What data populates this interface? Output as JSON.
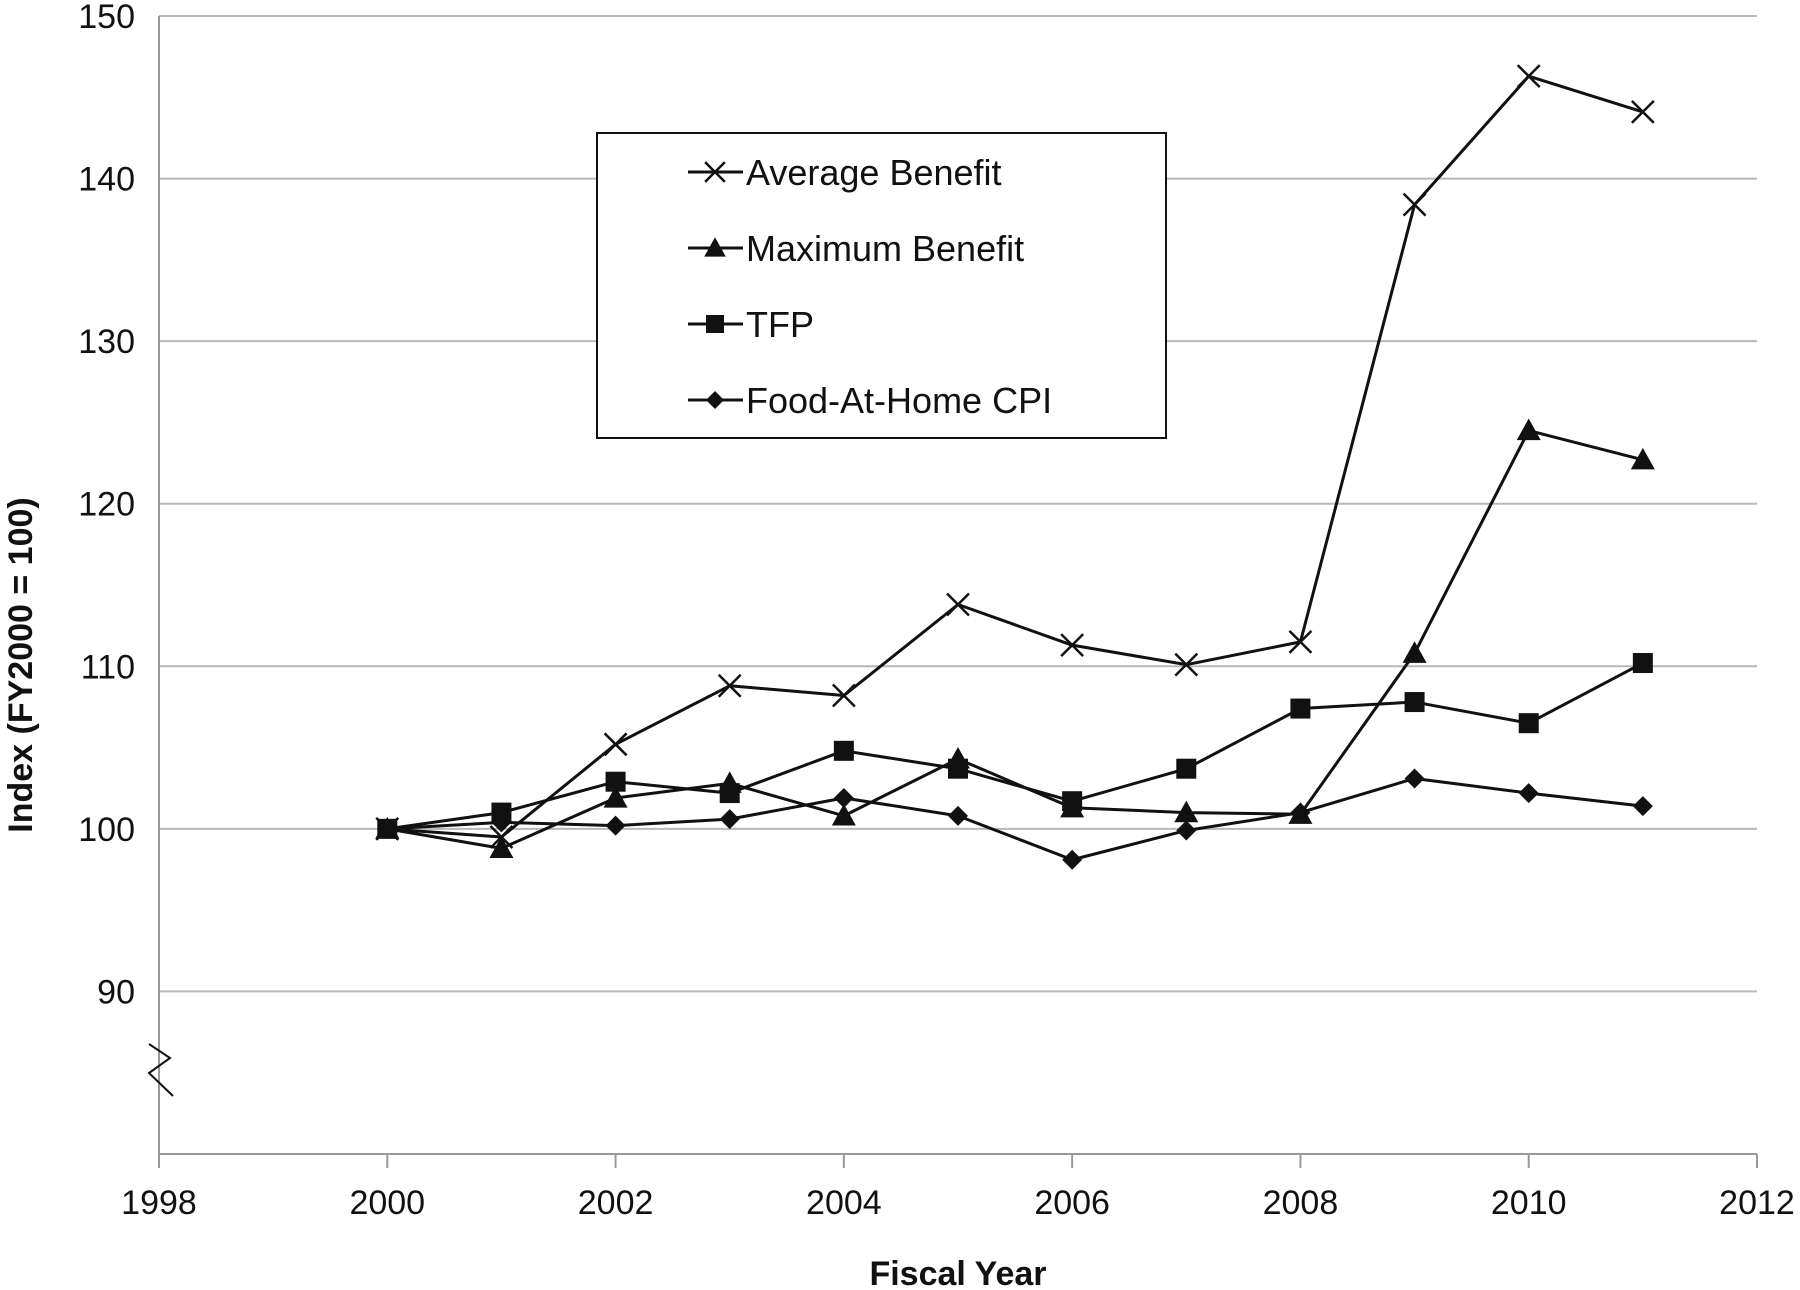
{
  "chart_data": {
    "type": "line",
    "title": "",
    "xlabel": "Fiscal Year",
    "ylabel": "Index (FY2000 = 100)",
    "xlim": [
      1998,
      2012
    ],
    "ylim": [
      80,
      150
    ],
    "x_ticks": [
      "1998",
      "2000",
      "2002",
      "2004",
      "2006",
      "2008",
      "2010",
      "2012"
    ],
    "y_ticks": [
      "90",
      "100",
      "110",
      "120",
      "130",
      "140",
      "150"
    ],
    "grid": "horizontal",
    "axis_break": "y-axis between 80 and 90",
    "legend_position": "upper-center",
    "x": [
      2000,
      2001,
      2002,
      2003,
      2004,
      2005,
      2006,
      2007,
      2008,
      2009,
      2010,
      2011
    ],
    "series": [
      {
        "name": "Average Benefit",
        "marker": "x",
        "values": [
          100.0,
          99.5,
          105.2,
          108.8,
          108.2,
          113.8,
          111.3,
          110.1,
          111.5,
          138.4,
          146.3,
          144.1
        ]
      },
      {
        "name": "Maximum Benefit",
        "marker": "triangle",
        "values": [
          100.0,
          98.8,
          101.9,
          102.8,
          100.8,
          104.3,
          101.3,
          101.0,
          100.9,
          110.8,
          124.5,
          122.7
        ]
      },
      {
        "name": "TFP",
        "marker": "square",
        "values": [
          100.0,
          101.0,
          102.9,
          102.2,
          104.8,
          103.7,
          101.7,
          103.7,
          107.4,
          107.8,
          106.5,
          110.2
        ]
      },
      {
        "name": "Food-At-Home CPI",
        "marker": "diamond",
        "values": [
          100.0,
          100.4,
          100.2,
          100.6,
          101.9,
          100.8,
          98.1,
          99.9,
          101.0,
          103.1,
          102.2,
          101.4
        ]
      }
    ],
    "colors": {
      "line": "#111111",
      "grid": "#b8b8b8",
      "axis": "#999999"
    }
  }
}
